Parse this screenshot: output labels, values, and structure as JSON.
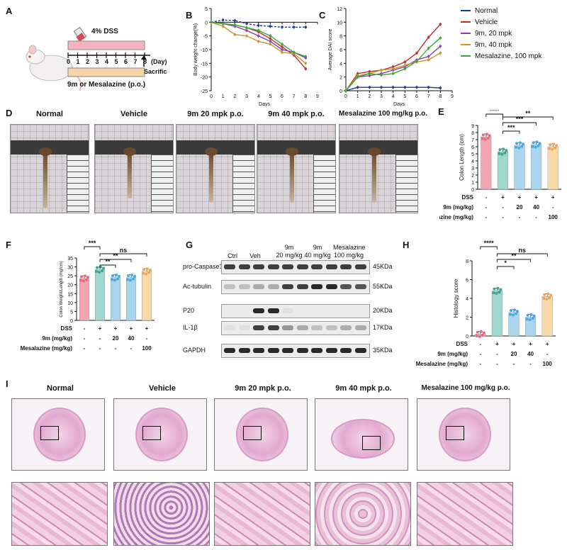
{
  "panels": {
    "A": {
      "letter": "A",
      "dss": "4% DSS",
      "day_label": "(Day)",
      "sacrific": "Sacrific",
      "days": [
        "0",
        "1",
        "2",
        "3",
        "4",
        "5",
        "6",
        "7",
        "8"
      ],
      "treatment": "9m or Mesalazine (p.o.)"
    },
    "B": {
      "letter": "B"
    },
    "C": {
      "letter": "C"
    },
    "D": {
      "letter": "D",
      "titles": [
        "Normal",
        "Vehicle",
        "9m 20 mpk p.o.",
        "9m 40 mpk p.o.",
        "Mesalazine 100 mg/kg p.o."
      ]
    },
    "E": {
      "letter": "E"
    },
    "F": {
      "letter": "F"
    },
    "G": {
      "letter": "G",
      "lanes": [
        "Ctrl",
        "Veh",
        "9m\n20 mg/kg",
        "9m\n40 mg/kg",
        "Mesalazine\n100 mg/kg"
      ],
      "lane_lines": [
        [
          "Ctrl"
        ],
        [
          "Veh"
        ],
        [
          "9m",
          "20 mg/kg"
        ],
        [
          "9m",
          "40 mg/kg"
        ],
        [
          "Mesalazine",
          "100 mg/kg"
        ]
      ],
      "proteins": [
        "pro-Caspase1",
        "Ac-tubulin",
        "P20",
        "IL-1β",
        "GAPDH"
      ],
      "sizes": [
        "45KDa",
        "55KDa",
        "20KDa",
        "17KDa",
        "35KDa"
      ]
    },
    "H": {
      "letter": "H"
    },
    "I": {
      "letter": "I",
      "titles": [
        "Normal",
        "Vehicle",
        "9m 20 mpk p.o.",
        "9m 40 mpk p.o.",
        "Mesalazine 100 mg/kg p.o."
      ]
    }
  },
  "treatment_table": {
    "row_labels": [
      "DSS",
      "9m (mg/kg)",
      "Mesalazine (mg/kg)"
    ],
    "columns": [
      [
        "-",
        "-",
        "-"
      ],
      [
        "+",
        "-",
        "-"
      ],
      [
        "+",
        "20",
        "-"
      ],
      [
        "+",
        "40",
        "-"
      ],
      [
        "+",
        "-",
        "100"
      ]
    ]
  },
  "legend": [
    {
      "name": "Normal",
      "color": "#1f3b8f"
    },
    {
      "name": "Vehicle",
      "color": "#c0302a"
    },
    {
      "name": "9m, 20 mpk",
      "color": "#8b3fb0"
    },
    {
      "name": "9m, 40 mpk",
      "color": "#c9962e"
    },
    {
      "name": "Mesalazine, 100 mpk",
      "color": "#3aa63a"
    }
  ],
  "chart_data": [
    {
      "id": "B",
      "type": "line",
      "xlabel": "Days",
      "ylabel": "Body weight change(%)",
      "x": [
        0,
        1,
        2,
        3,
        4,
        5,
        6,
        7,
        8
      ],
      "xlim": [
        0,
        9
      ],
      "ylim": [
        -25,
        5
      ],
      "yticks": [
        5,
        0,
        -5,
        -10,
        -15,
        -20,
        -25
      ],
      "xticks": [
        0,
        1,
        2,
        3,
        4,
        5,
        6,
        7,
        8,
        9
      ],
      "series": [
        {
          "name": "Normal",
          "values": [
            0,
            0.8,
            0.6,
            -0.5,
            -1.2,
            -1.5,
            -1.8,
            -1.8,
            -1.8
          ]
        },
        {
          "name": "Vehicle",
          "values": [
            0,
            -0.5,
            -1,
            -2,
            -3.5,
            -6,
            -9,
            -12,
            -17
          ]
        },
        {
          "name": "9m, 20 mpk",
          "values": [
            0,
            -0.5,
            -1.5,
            -3,
            -5,
            -7,
            -10,
            -11,
            -13
          ]
        },
        {
          "name": "9m, 40 mpk",
          "values": [
            0,
            -1.5,
            -4.5,
            -5,
            -7,
            -8,
            -11,
            -11.5,
            -15
          ]
        },
        {
          "name": "Mesalazine, 100 mpk",
          "values": [
            0,
            -0.5,
            -1,
            -2,
            -3,
            -5,
            -8,
            -11,
            -12.5
          ]
        }
      ]
    },
    {
      "id": "C",
      "type": "line",
      "xlabel": "Days",
      "ylabel": "Average DAI score",
      "x": [
        0,
        1,
        2,
        3,
        4,
        5,
        6,
        7,
        8
      ],
      "xlim": [
        0,
        9
      ],
      "ylim": [
        0,
        12
      ],
      "yticks": [
        0,
        2,
        4,
        6,
        8,
        10,
        12
      ],
      "xticks": [
        0,
        1,
        2,
        3,
        4,
        5,
        6,
        7,
        8,
        9
      ],
      "series": [
        {
          "name": "Normal",
          "values": [
            0,
            0.5,
            0.5,
            0.5,
            0.5,
            0.5,
            0.5,
            0.5,
            0.4
          ]
        },
        {
          "name": "Vehicle",
          "values": [
            0,
            2.5,
            2.8,
            3,
            3.5,
            4.2,
            5.5,
            7.8,
            9.7
          ]
        },
        {
          "name": "9m, 20 mpk",
          "values": [
            0,
            2,
            2.2,
            2.5,
            3,
            3.5,
            4.5,
            5,
            6.5
          ]
        },
        {
          "name": "9m, 40 mpk",
          "values": [
            0,
            2.2,
            2.5,
            3,
            3.2,
            3.7,
            4.2,
            4.5,
            5.5
          ]
        },
        {
          "name": "Mesalazine, 100 mpk",
          "values": [
            0,
            2,
            2.5,
            2.3,
            2.5,
            3.2,
            4.3,
            6.2,
            7.7
          ]
        }
      ]
    },
    {
      "id": "E",
      "type": "bar",
      "ylabel": "Colon Length (cm)",
      "ylim": [
        0,
        9
      ],
      "yticks": [
        0,
        1,
        2,
        3,
        4,
        5,
        6,
        7,
        8,
        9
      ],
      "values": [
        7.4,
        5.3,
        6.2,
        6.3,
        6.0
      ],
      "colors": [
        "#f4a6b0",
        "#9fd8cf",
        "#a9d6ee",
        "#a9d6ee",
        "#f9d9a8"
      ],
      "dots": [
        "#e86a80",
        "#3aa693",
        "#4aa9dc",
        "#4aa9dc",
        "#e8a95a"
      ],
      "sig": [
        {
          "from": 0,
          "to": 1,
          "label": "****"
        },
        {
          "from": 1,
          "to": 2,
          "label": "***"
        },
        {
          "from": 1,
          "to": 3,
          "label": "***"
        },
        {
          "from": 1,
          "to": 4,
          "label": "**"
        }
      ]
    },
    {
      "id": "F",
      "type": "bar",
      "ylabel": "Colon Weight/Length (mg/cm)",
      "ylim": [
        0,
        35
      ],
      "yticks": [
        0,
        5,
        10,
        15,
        20,
        25,
        30,
        35
      ],
      "values": [
        23.5,
        28.5,
        24,
        24,
        27.5
      ],
      "colors": [
        "#f4a6b0",
        "#9fd8cf",
        "#a9d6ee",
        "#a9d6ee",
        "#f9d9a8"
      ],
      "dots": [
        "#e86a80",
        "#3aa693",
        "#4aa9dc",
        "#4aa9dc",
        "#e8a95a"
      ],
      "sig": [
        {
          "from": 0,
          "to": 1,
          "label": "***"
        },
        {
          "from": 1,
          "to": 2,
          "label": "**"
        },
        {
          "from": 1,
          "to": 3,
          "label": "**"
        },
        {
          "from": 1,
          "to": 4,
          "label": "ns"
        }
      ]
    },
    {
      "id": "H",
      "type": "bar",
      "ylabel": "Histology score",
      "ylim": [
        0,
        8
      ],
      "yticks": [
        0,
        2,
        4,
        6,
        8
      ],
      "values": [
        0.2,
        4.8,
        2.5,
        2.0,
        4.2
      ],
      "colors": [
        "#f4a6b0",
        "#9fd8cf",
        "#a9d6ee",
        "#a9d6ee",
        "#f9d9a8"
      ],
      "dots": [
        "#e86a80",
        "#3aa693",
        "#4aa9dc",
        "#4aa9dc",
        "#e8a95a"
      ],
      "sig": [
        {
          "from": 0,
          "to": 1,
          "label": "****"
        },
        {
          "from": 1,
          "to": 2,
          "label": "*"
        },
        {
          "from": 1,
          "to": 3,
          "label": "**"
        },
        {
          "from": 1,
          "to": 4,
          "label": "ns"
        }
      ]
    }
  ]
}
